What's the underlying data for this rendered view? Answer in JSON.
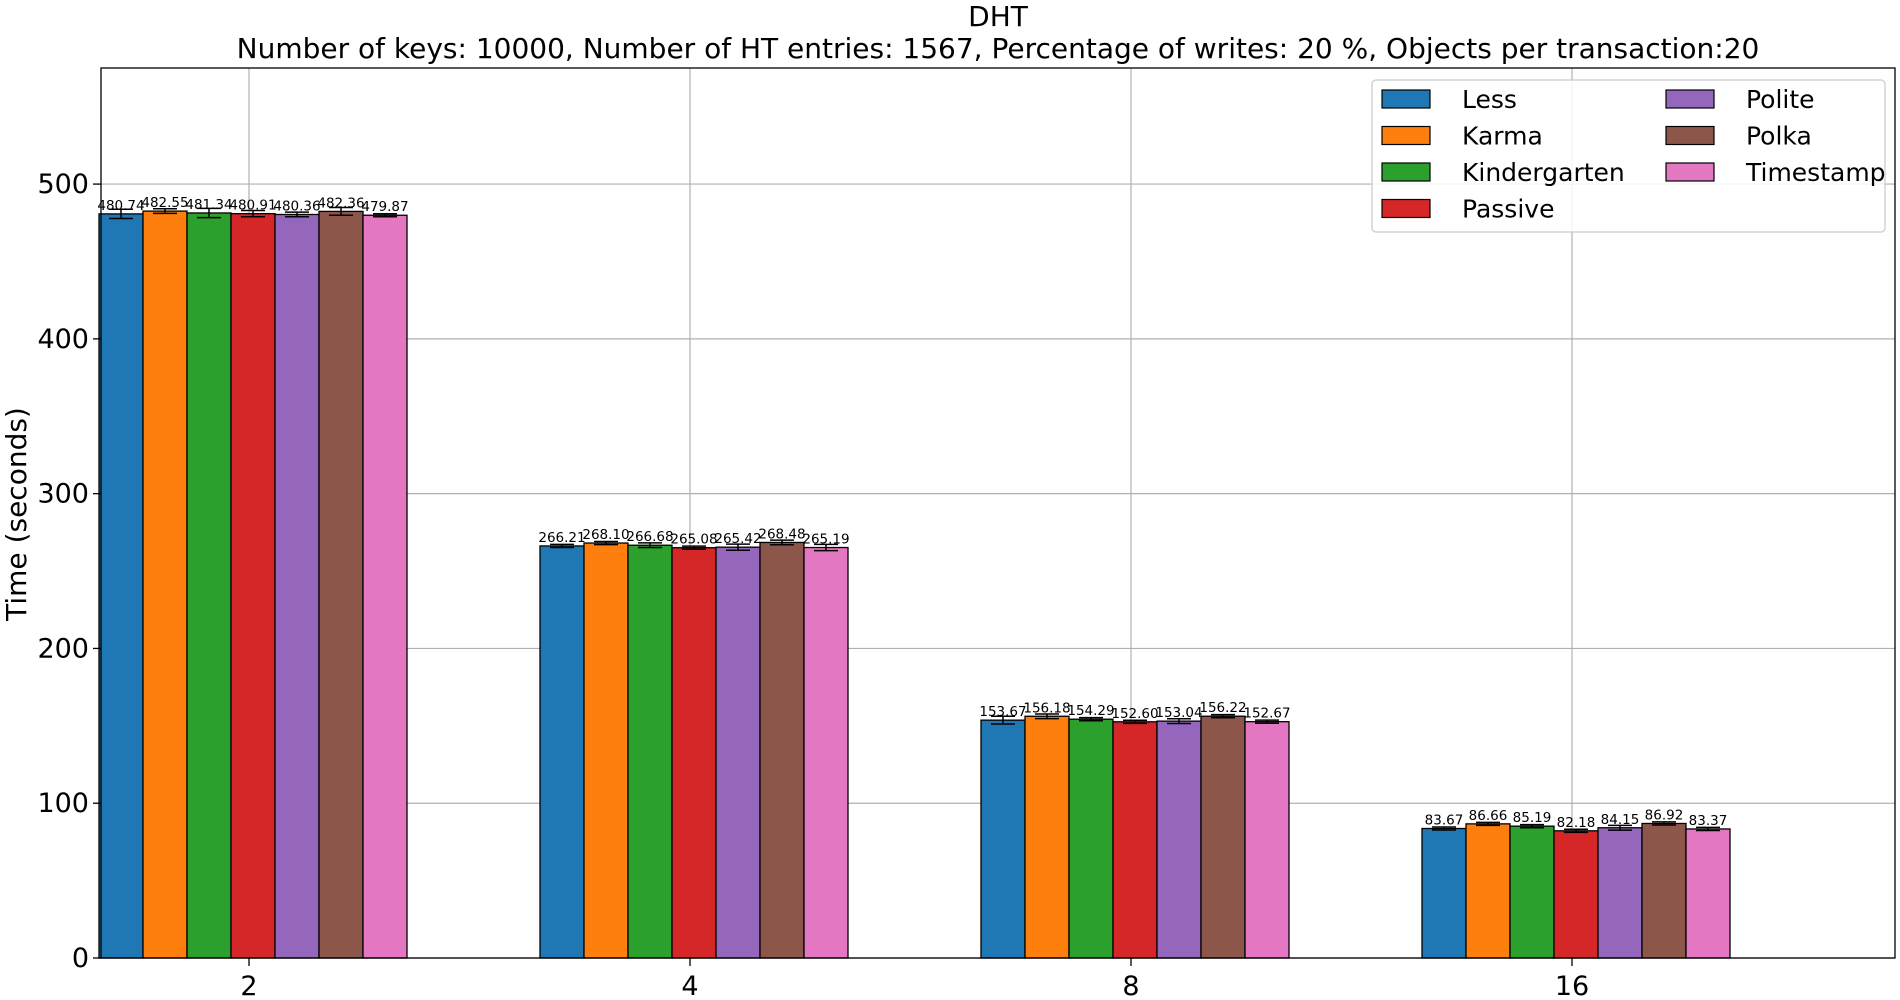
{
  "chart_data": {
    "type": "bar",
    "title": "DHT",
    "subtitle": "Number of keys: 10000, Number of HT entries: 1567, Percentage of writes: 20 %, Objects per transaction:20",
    "xlabel": "",
    "ylabel": "Time (seconds)",
    "ylim": [
      0,
      575
    ],
    "yticks": [
      0,
      100,
      200,
      300,
      400,
      500
    ],
    "categories": [
      "2",
      "4",
      "8",
      "16"
    ],
    "grid": true,
    "legend_position": "top-right",
    "legend_columns": 2,
    "series": [
      {
        "name": "Less",
        "color": "#1f77b4",
        "values": [
          480.74,
          266.21,
          153.67,
          83.67
        ],
        "errors": [
          3.0,
          1.0,
          2.5,
          1.0
        ]
      },
      {
        "name": "Karma",
        "color": "#ff7f0e",
        "values": [
          482.55,
          268.1,
          156.18,
          86.66
        ],
        "errors": [
          1.5,
          1.0,
          1.5,
          1.0
        ]
      },
      {
        "name": "Kindergarten",
        "color": "#2ca02c",
        "values": [
          481.34,
          266.68,
          154.29,
          85.19
        ],
        "errors": [
          3.0,
          1.5,
          1.0,
          1.0
        ]
      },
      {
        "name": "Passive",
        "color": "#d62728",
        "values": [
          480.91,
          265.08,
          152.6,
          82.18
        ],
        "errors": [
          2.0,
          1.0,
          1.0,
          1.0
        ]
      },
      {
        "name": "Polite",
        "color": "#9467bd",
        "values": [
          480.36,
          265.42,
          153.04,
          84.15
        ],
        "errors": [
          1.5,
          2.0,
          1.5,
          1.5
        ]
      },
      {
        "name": "Polka",
        "color": "#8c564b",
        "values": [
          482.36,
          268.48,
          156.22,
          86.92
        ],
        "errors": [
          2.5,
          1.5,
          1.0,
          1.0
        ]
      },
      {
        "name": "Timestamp",
        "color": "#e377c2",
        "values": [
          479.87,
          265.19,
          152.67,
          83.37
        ],
        "errors": [
          1.0,
          2.0,
          1.0,
          1.0
        ]
      }
    ]
  }
}
